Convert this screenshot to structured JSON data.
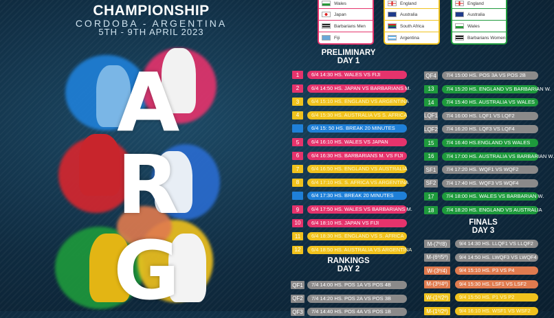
{
  "header": {
    "title": "CHAMPIONSHIP",
    "location": "CORDOBA - ARGENTINA",
    "dates": "5TH - 9TH APRIL 2023"
  },
  "letters": [
    "A",
    "R",
    "G"
  ],
  "colors": {
    "pink": "#e5336c",
    "yellow": "#f0c21d",
    "blue": "#1f80d8",
    "grey": "#8b8a8a",
    "green": "#1e9a3c",
    "orange": "#e07b4f"
  },
  "groups": [
    {
      "color": "#e5336c",
      "teams": [
        {
          "name": "Wales",
          "flag": "wales-flag"
        },
        {
          "name": "Japan",
          "flag": "japan-flag"
        },
        {
          "name": "Barbarians Men",
          "flag": "barbarians-flag"
        },
        {
          "name": "Fiji",
          "flag": "fiji-flag"
        }
      ]
    },
    {
      "color": "#f0c21d",
      "teams": [
        {
          "name": "England",
          "flag": "england-flag"
        },
        {
          "name": "Australia",
          "flag": "australia-flag"
        },
        {
          "name": "South Africa",
          "flag": "south-africa-flag"
        },
        {
          "name": "Argentina",
          "flag": "argentina-flag"
        }
      ]
    },
    {
      "color": "#1e9a3c",
      "teams": [
        {
          "name": "England",
          "flag": "england-flag"
        },
        {
          "name": "Australia",
          "flag": "australia-flag"
        },
        {
          "name": "Wales",
          "flag": "wales-flag"
        },
        {
          "name": "Barbarians Women",
          "flag": "barbarians-flag"
        }
      ]
    }
  ],
  "sections": {
    "preliminary": "PRELIMINARY",
    "day1": "DAY 1",
    "rankings": "RANKINGS",
    "day2": "DAY 2",
    "finals": "FINALS",
    "day3": "DAY 3"
  },
  "day1": [
    {
      "n": "1",
      "c": "pink",
      "t": "6/4 14:30 HS. WALES VS FIJI"
    },
    {
      "n": "2",
      "c": "pink",
      "t": "6/4 14:50 HS. JAPAN VS BARBARIANS M."
    },
    {
      "n": "3",
      "c": "yellow",
      "t": "6/4 15:10 HS. ENGLAND VS ARGENTINA"
    },
    {
      "n": "4",
      "c": "yellow",
      "t": "6/4 15:30 HS. AUSTRALIA VS S. AFRICA"
    },
    {
      "n": "",
      "c": "blue",
      "t": "6/4 15: 50 HS. BREAK 20 MINUTES"
    },
    {
      "n": "5",
      "c": "pink",
      "t": "6/4 16:10 HS. WALES VS JAPAN"
    },
    {
      "n": "6",
      "c": "pink",
      "t": "6/4 16:30 HS. BARBARIANS M. VS FIJI"
    },
    {
      "n": "7",
      "c": "yellow",
      "t": "6/4 16:50 HS. ENGLAND VS AUSTRALIA"
    },
    {
      "n": "8",
      "c": "yellow",
      "t": "6/4 17:10 HS. S. AFRICA VS ARGENTINA"
    },
    {
      "n": "",
      "c": "blue",
      "t": "6/4 17:30 HS. BREAK 20 MINUTES"
    },
    {
      "n": "9",
      "c": "pink",
      "t": "6/4 17:50 HS. WALES VS BARBARIANS M."
    },
    {
      "n": "10",
      "c": "pink",
      "t": "6/4 18:10 HS. JAPAN VS FIJI"
    },
    {
      "n": "11",
      "c": "yellow",
      "t": "6/4 18:30 HS. ENGLAND VS S. AFRICA"
    },
    {
      "n": "12",
      "c": "yellow",
      "t": "6/4 18:50 HS. AUSTRALIA VS ARGENTINA"
    }
  ],
  "day2a": [
    {
      "n": "QF1",
      "c": "grey",
      "t": "7/4 14:00 HS. POS 1A VS POS 4B"
    },
    {
      "n": "QF2",
      "c": "grey",
      "t": "7/4 14:20 HS. POS 2A VS POS 3B"
    },
    {
      "n": "QF3",
      "c": "grey",
      "t": "7/4 14:40 HS. POS 4A VS POS 1B"
    }
  ],
  "day2b": [
    {
      "n": "QF4",
      "c": "grey",
      "t": "7/4 15:00 HS. POS 3A VS POS 2B"
    },
    {
      "n": "13",
      "c": "green",
      "t": "7/4 15:20 HS. ENGLAND VS BARBARIAN W."
    },
    {
      "n": "14",
      "c": "green",
      "t": "7/4 15:40 HS. AUSTRALIA VS WALES"
    },
    {
      "n": "LQF1",
      "c": "grey",
      "t": "7/4 16:00 HS. LQF1 VS LQF2"
    },
    {
      "n": "LQF2",
      "c": "grey",
      "t": "7/4 16:20 HS. LQF3 VS LQF4"
    },
    {
      "n": "15",
      "c": "green",
      "t": "7/4 16:40 HS.ENGLAND VS WALES"
    },
    {
      "n": "16",
      "c": "green",
      "t": "7/4 17:00 HS. AUSTRALIA VS BARBARIAN W."
    },
    {
      "n": "SF1",
      "c": "grey",
      "t": "7/4 17:20 HS. WQF1 VS WQF2"
    },
    {
      "n": "SF2",
      "c": "grey",
      "t": "7/4 17:40 HS. WQF3 VS WQF4"
    },
    {
      "n": "17",
      "c": "green",
      "t": "7/4 18:00 HS. WALES VS BARBARIAN W."
    },
    {
      "n": "18",
      "c": "green",
      "t": "7/4 18:20 HS. ENGLAND VS AUSTRALIA"
    }
  ],
  "day3": [
    {
      "n": "M-(7º/8)",
      "c": "grey",
      "t": "9/4 14:30 HS. LLQF1 VS LLQF2"
    },
    {
      "n": "M-(6º/5º)",
      "c": "grey",
      "t": "9/4 14:50 HS. LWQF3 VS LWQF4"
    },
    {
      "n": "W-(3º/4)",
      "c": "orange",
      "t": "9/4 15:10 HS. P3 VS P4"
    },
    {
      "n": "M-(3º/4º)",
      "c": "orange",
      "t": "9/4 15:30 HS. LSF1 VS LSF2"
    },
    {
      "n": "W-(1º/2º)",
      "c": "yellow",
      "t": "9/4 15:50 HS. P1 VS P2"
    },
    {
      "n": "M-(1º/2º)",
      "c": "yellow",
      "t": "9/4 16:10 HS. WSF1 VS WSF2"
    }
  ]
}
